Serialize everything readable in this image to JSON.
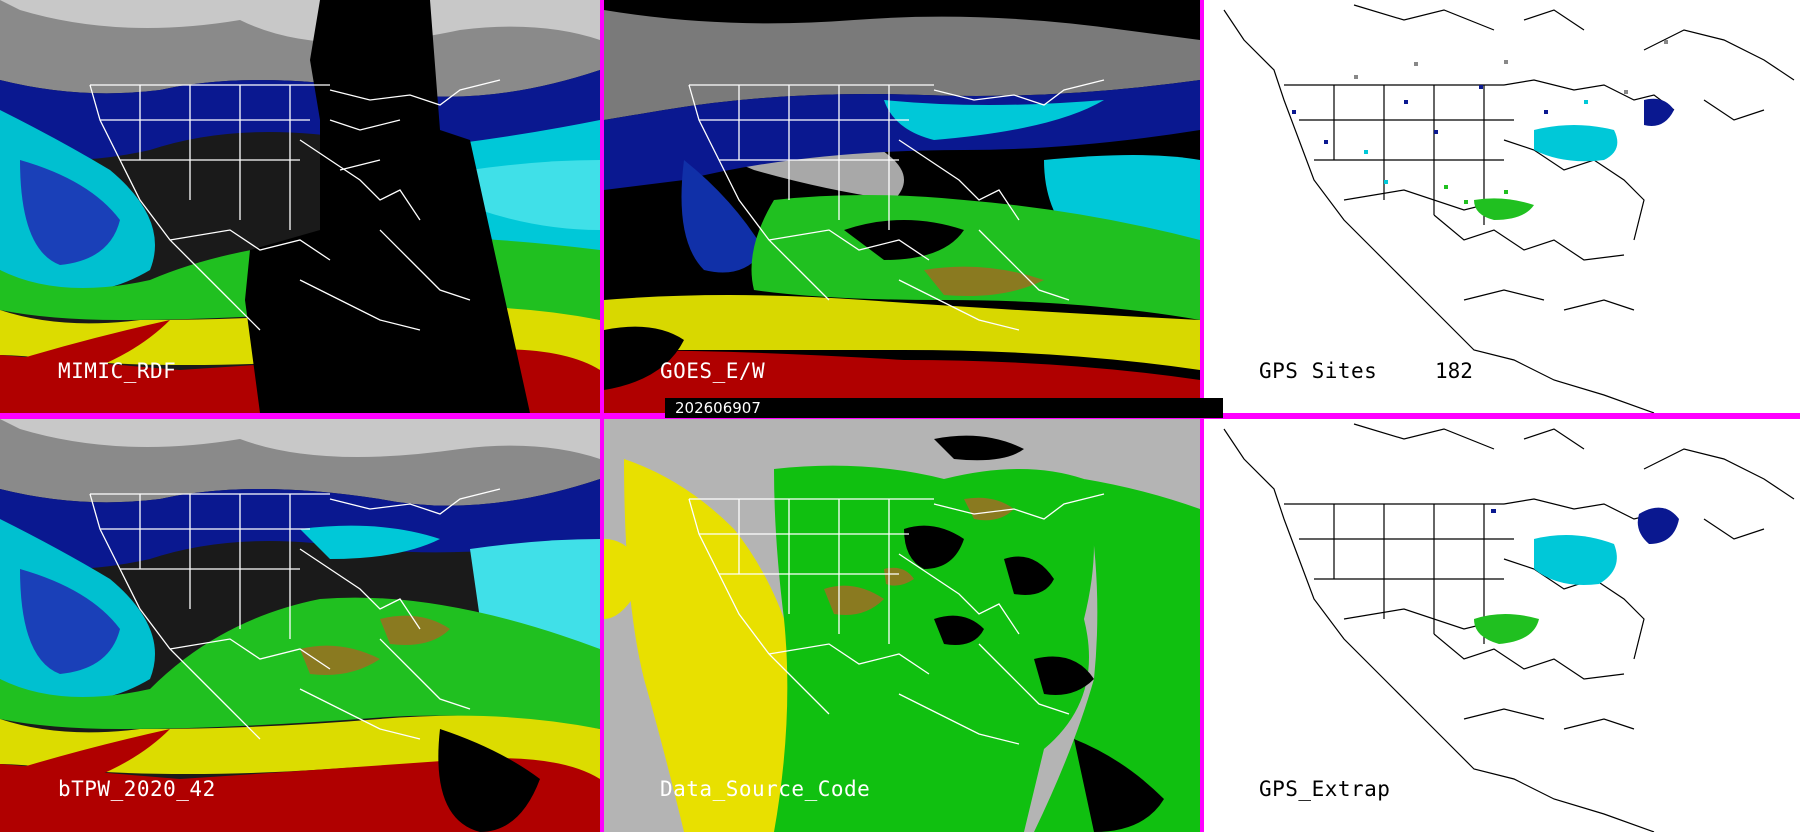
{
  "panels": [
    {
      "id": "mimic-rdf",
      "label": "MIMIC_RDF"
    },
    {
      "id": "goes-ew",
      "label": "GOES_E/W"
    },
    {
      "id": "gps-sites",
      "label": "GPS Sites",
      "count": "182"
    },
    {
      "id": "btpw",
      "label": "bTPW_2020_42"
    },
    {
      "id": "data-source-code",
      "label": "Data_Source_Code"
    },
    {
      "id": "gps-extrap",
      "label": "GPS_Extrap"
    }
  ],
  "timestamp": "202606907",
  "colors": {
    "divider": "#ff00ff",
    "tpw_dry": "#0a1890",
    "tpw_lowmid": "#00c8d8",
    "tpw_mid": "#20d020",
    "tpw_moist": "#e0e000",
    "tpw_wet": "#b00000",
    "cloud_gray": "#9a9a9a",
    "source_yellow": "#e8e000",
    "source_green": "#10c010",
    "source_gray": "#b4b4b4"
  }
}
